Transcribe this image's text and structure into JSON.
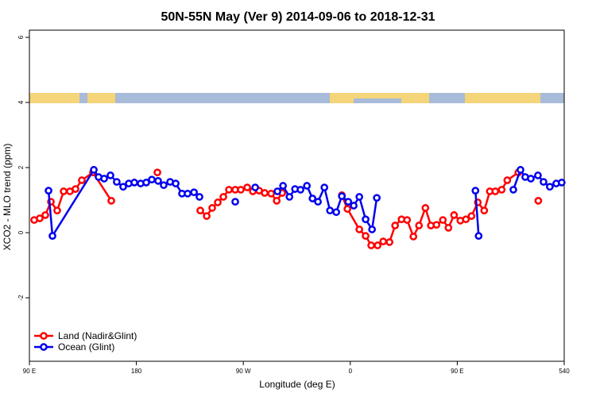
{
  "chart_data": {
    "type": "line",
    "title": "50N-55N May (Ver 9)   2014-09-06 to 2018-12-31",
    "xlabel": "Longitude (deg E)",
    "ylabel": "XCO2 - MLO trend (ppm)",
    "xlim": [
      90,
      540
    ],
    "xticks": [
      {
        "value": 90,
        "label": "90 E"
      },
      180,
      {
        "value": 270,
        "label": "90 W"
      },
      {
        "value": 360,
        "label": "0"
      },
      {
        "value": 450,
        "label": "90 E"
      },
      540
    ],
    "ylim": [
      -3.95,
      6.22
    ],
    "yticks": [
      -2,
      0,
      2,
      4,
      6
    ],
    "legend": "lower left",
    "series": [
      {
        "name": "Land (Nadir&Glint)",
        "color": "#ff0000",
        "x": [
          94.0,
          98.7,
          103.4,
          108.1,
          113.4,
          118.8,
          124.1,
          128.8,
          134.1,
          143.5,
          158.9,
          null,
          197.7,
          null,
          233.8,
          239.2,
          243.8,
          248.5,
          253.2,
          257.9,
          263.2,
          267.9,
          273.3,
          278.0,
          283.3,
          288.0,
          293.4,
          298.1,
          302.7,
          null,
          352.9,
          357.6,
          367.6,
          372.9,
          377.6,
          383.0,
          387.7,
          393.0,
          397.7,
          403.1,
          407.8,
          413.1,
          417.8,
          423.2,
          427.8,
          432.5,
          437.9,
          442.6,
          447.3,
          452.6,
          457.3,
          462.0,
          467.3,
          472.7,
          477.4,
          482.0,
          487.4,
          492.1,
          501.4,
          null,
          518.2
        ],
        "values": [
          0.39,
          0.44,
          0.54,
          0.95,
          0.68,
          1.27,
          1.27,
          1.34,
          1.61,
          1.85,
          0.98,
          null,
          1.85,
          null,
          0.68,
          0.51,
          0.76,
          0.93,
          1.1,
          1.32,
          1.32,
          1.32,
          1.39,
          1.27,
          1.29,
          1.22,
          1.2,
          0.98,
          1.22,
          null,
          1.15,
          0.73,
          0.1,
          -0.1,
          -0.39,
          -0.39,
          -0.27,
          -0.29,
          0.22,
          0.41,
          0.39,
          -0.12,
          0.22,
          0.76,
          0.22,
          0.24,
          0.39,
          0.15,
          0.54,
          0.37,
          0.41,
          0.51,
          0.93,
          0.68,
          1.27,
          1.27,
          1.32,
          1.61,
          1.85,
          null,
          0.98
        ]
      },
      {
        "name": "Ocean (Glint)",
        "color": "#0000ee",
        "x": [
          106.1,
          109.4,
          144.2,
          148.2,
          152.9,
          158.2,
          163.5,
          168.9,
          173.6,
          178.3,
          183.6,
          188.3,
          193.0,
          198.3,
          203.0,
          208.4,
          213.1,
          218.4,
          223.1,
          228.5,
          233.1,
          null,
          263.2,
          null,
          280.0,
          null,
          298.7,
          303.4,
          308.8,
          313.5,
          318.1,
          323.5,
          328.2,
          332.8,
          338.2,
          342.9,
          348.2,
          352.9,
          358.3,
          362.9,
          367.6,
          372.9,
          378.3,
          382.3,
          null,
          465.3,
          468.0,
          null,
          497.2,
          503.2,
          507.2,
          511.9,
          517.9,
          522.6,
          527.9,
          533.3,
          537.9
        ],
        "values": [
          1.29,
          -0.1,
          1.93,
          1.71,
          1.66,
          1.76,
          1.56,
          1.41,
          1.51,
          1.54,
          1.51,
          1.54,
          1.63,
          1.59,
          1.46,
          1.56,
          1.51,
          1.2,
          1.2,
          1.24,
          1.1,
          null,
          0.95,
          null,
          1.39,
          null,
          1.27,
          1.44,
          1.1,
          1.34,
          1.32,
          1.44,
          1.05,
          0.95,
          1.39,
          0.68,
          0.63,
          1.12,
          0.95,
          0.83,
          1.1,
          0.41,
          0.1,
          1.07,
          null,
          1.29,
          -0.1,
          null,
          1.32,
          1.93,
          1.71,
          1.66,
          1.76,
          1.56,
          1.41,
          1.51,
          1.54
        ]
      }
    ]
  }
}
